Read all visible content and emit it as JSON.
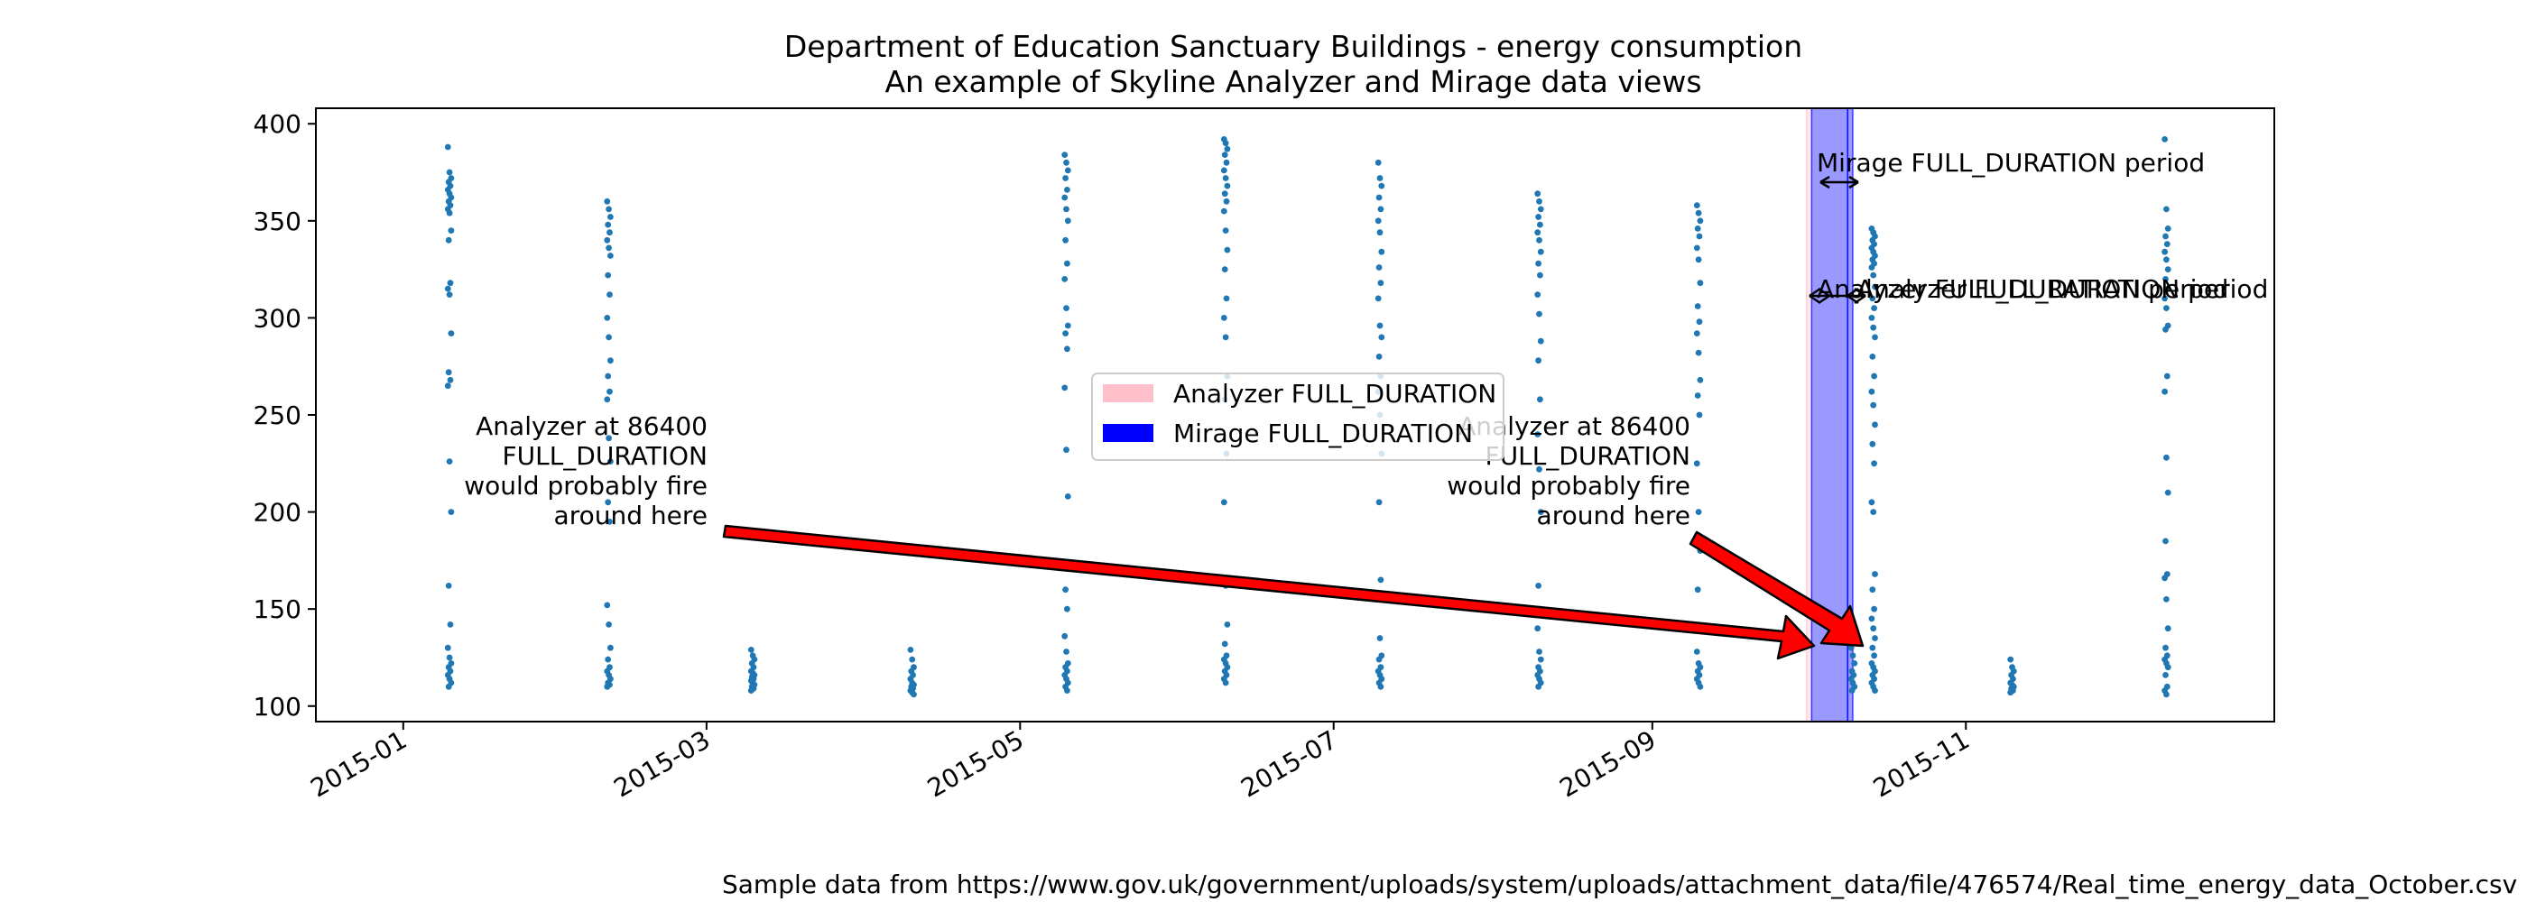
{
  "chart_data": {
    "type": "scatter",
    "title": "Department of Education Sanctuary Buildings - energy consumption",
    "subtitle": "An example of Skyline Analyzer and Mirage data views",
    "xlabel": "",
    "ylabel": "",
    "xlim": [
      "2014-12-15",
      "2015-12-31"
    ],
    "ylim": [
      92,
      408
    ],
    "x_ticks": [
      "2015-01",
      "2015-03",
      "2015-05",
      "2015-07",
      "2015-09",
      "2015-11"
    ],
    "y_ticks": [
      100,
      150,
      200,
      250,
      300,
      350,
      400
    ],
    "grid": false,
    "legend_position": "center",
    "colors": {
      "points": "#1f77b4",
      "analyzer_full_duration": "#ffc0cb",
      "mirage_full_duration": "#0000ff",
      "arrow_fill": "#ff0000",
      "arrow_edge": "#000000"
    },
    "series": [
      {
        "clusters": [
          {
            "x": "2015-01-10",
            "values": [
              388,
              375,
              372,
              370,
              368,
              366,
              364,
              362,
              360,
              358,
              356,
              354,
              345,
              340,
              318,
              315,
              312,
              292,
              272,
              268,
              265,
              226,
              200,
              162,
              142,
              130,
              125,
              122,
              120,
              118,
              116,
              114,
              112,
              110
            ]
          },
          {
            "x": "2015-02-10",
            "values": [
              360,
              356,
              352,
              348,
              344,
              340,
              336,
              332,
              322,
              312,
              300,
              290,
              278,
              270,
              262,
              258,
              238,
              226,
              205,
              195,
              152,
              142,
              130,
              124,
              120,
              118,
              116,
              114,
              112,
              111,
              110
            ]
          },
          {
            "x": "2015-03-10",
            "values": [
              129,
              126,
              124,
              122,
              120,
              118,
              117,
              116,
              115,
              114,
              113,
              112,
              111,
              110,
              109,
              108
            ]
          },
          {
            "x": "2015-04-10",
            "values": [
              129,
              124,
              120,
              118,
              116,
              114,
              112,
              111,
              110,
              109,
              108,
              107,
              106
            ]
          },
          {
            "x": "2015-05-10",
            "values": [
              384,
              380,
              376,
              372,
              366,
              362,
              356,
              350,
              340,
              328,
              320,
              305,
              296,
              292,
              284,
              264,
              232,
              208,
              160,
              150,
              136,
              128,
              122,
              120,
              118,
              116,
              114,
              112,
              110,
              108
            ]
          },
          {
            "x": "2015-06-10",
            "values": [
              392,
              390,
              387,
              384,
              380,
              376,
              372,
              368,
              364,
              360,
              355,
              345,
              335,
              325,
              310,
              300,
              290,
              270,
              258,
              230,
              205,
              162,
              142,
              132,
              126,
              124,
              122,
              120,
              118,
              116,
              114,
              112
            ]
          },
          {
            "x": "2015-07-10",
            "values": [
              380,
              372,
              368,
              362,
              356,
              350,
              344,
              334,
              326,
              318,
              310,
              296,
              290,
              280,
              270,
              262,
              250,
              230,
              205,
              165,
              155,
              135,
              126,
              124,
              120,
              118,
              116,
              114,
              112,
              110
            ]
          },
          {
            "x": "2015-08-10",
            "values": [
              364,
              360,
              356,
              352,
              348,
              344,
              340,
              334,
              328,
              322,
              312,
              302,
              288,
              278,
              258,
              240,
              222,
              200,
              162,
              150,
              140,
              128,
              124,
              120,
              118,
              116,
              114,
              112,
              110
            ]
          },
          {
            "x": "2015-09-10",
            "values": [
              358,
              354,
              350,
              346,
              342,
              336,
              330,
              318,
              306,
              298,
              292,
              282,
              268,
              260,
              250,
              225,
              200,
              180,
              160,
              140,
              128,
              122,
              120,
              118,
              116,
              114,
              112,
              110
            ]
          },
          {
            "x": "2015-10-10",
            "values": [
              130,
              126,
              122,
              118,
              116,
              114,
              112,
              110,
              108
            ]
          },
          {
            "x": "2015-10-14",
            "values": [
              346,
              344,
              342,
              340,
              338,
              336,
              334,
              332,
              330,
              328,
              326,
              322,
              316,
              310,
              305,
              300,
              295,
              290,
              280,
              270,
              262,
              255,
              245,
              235,
              225,
              205,
              200,
              168,
              160,
              150,
              145,
              140,
              135,
              130,
              126,
              122,
              120,
              118,
              116,
              114,
              112,
              110,
              108
            ]
          },
          {
            "x": "2015-11-10",
            "values": [
              124,
              120,
              118,
              116,
              114,
              112,
              111,
              110,
              109,
              108,
              107
            ]
          },
          {
            "x": "2015-12-10",
            "values": [
              392,
              356,
              346,
              342,
              338,
              334,
              330,
              325,
              320,
              315,
              310,
              305,
              296,
              294,
              270,
              262,
              228,
              210,
              185,
              168,
              166,
              155,
              140,
              130,
              126,
              124,
              122,
              120,
              116,
              110,
              108,
              106
            ]
          }
        ]
      }
    ],
    "spans": [
      {
        "label": "Analyzer FULL_DURATION",
        "from": "2015-10-01",
        "to": "2015-10-02",
        "color": "#ffc0cb",
        "alpha": 0.4
      },
      {
        "label": "Mirage FULL_DURATION",
        "from": "2015-10-02",
        "to": "2015-10-09",
        "color": "#0000ff",
        "alpha": 0.4
      },
      {
        "label": "",
        "from": "2015-10-09",
        "to": "2015-10-10",
        "color": "#0000ff",
        "alpha": 0.4
      }
    ],
    "legend": {
      "entries": [
        {
          "label": "Analyzer FULL_DURATION",
          "color": "#ffc0cb"
        },
        {
          "label": "Mirage FULL_DURATION",
          "color": "#0000ff"
        }
      ]
    },
    "annotations": {
      "mirage_period_label": "Mirage FULL_DURATION period",
      "analyzer_period_label_1": "Analyzer FULL_DURATION period",
      "analyzer_period_label_2": "Analyzer FULL_DURATION period",
      "fire_note_1": [
        "Analyzer at 86400",
        "FULL_DURATION",
        "would probably fire",
        "around here"
      ],
      "fire_note_2": [
        "Analyzer at 86400",
        "FULL_DURATION",
        "would probably fire",
        "around here"
      ]
    }
  },
  "footer": {
    "source": "Sample data from https://www.gov.uk/government/uploads/system/uploads/attachment_data/file/476574/Real_time_energy_data_October.csv"
  }
}
